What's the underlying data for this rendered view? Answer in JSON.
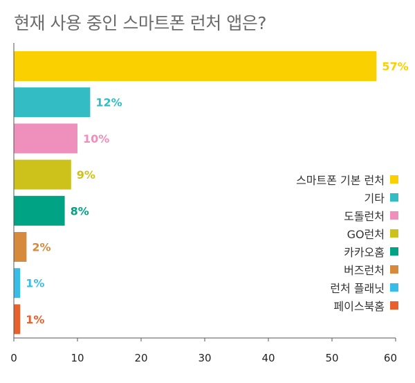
{
  "title": "현재 사용 중인 스마트폰 런처 앱은?",
  "chart_data": {
    "type": "bar",
    "orientation": "horizontal",
    "title": "현재 사용 중인 스마트폰 런처 앱은?",
    "categories": [
      "스마트폰 기본 런처",
      "기타",
      "도돌런처",
      "GO런처",
      "카카오홈",
      "버즈런처",
      "런처 플래닛",
      "페이스북홈"
    ],
    "values": [
      57,
      12,
      10,
      9,
      8,
      2,
      1,
      1
    ],
    "value_labels": [
      "57%",
      "12%",
      "10%",
      "9%",
      "8%",
      "2%",
      "1%",
      "1%"
    ],
    "colors": [
      "#fbd000",
      "#33bcc4",
      "#ef8fbb",
      "#cdc21b",
      "#00a384",
      "#d88a3c",
      "#38bde9",
      "#e8602c"
    ],
    "xlim": [
      0,
      60
    ],
    "xticks": [
      "0",
      "10",
      "20",
      "30",
      "40",
      "50",
      "60"
    ],
    "legend_position": "right",
    "grid": false
  }
}
